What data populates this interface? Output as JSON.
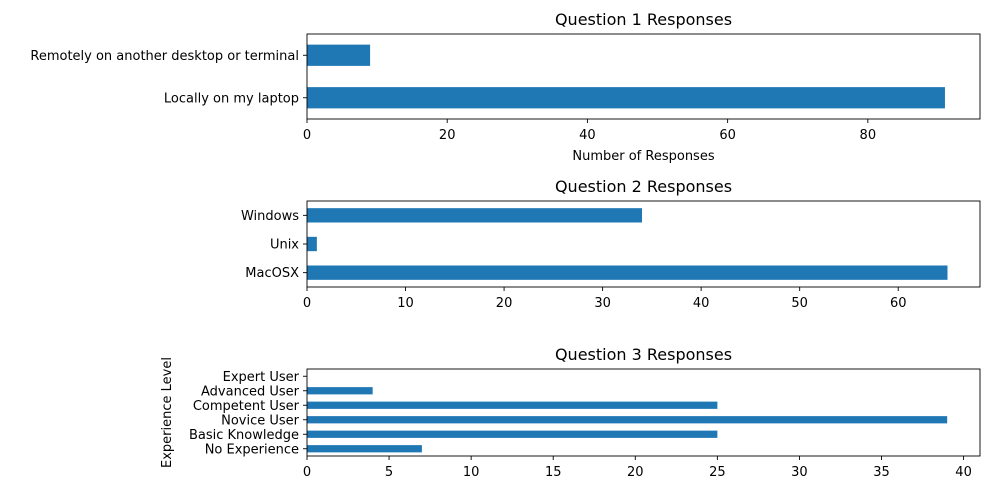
{
  "chart_data": [
    {
      "type": "bar",
      "orientation": "horizontal",
      "title": "Question 1 Responses",
      "xlabel": "Number of Responses",
      "ylabel": "",
      "categories": [
        "Locally on my laptop",
        "Remotely on another desktop or terminal"
      ],
      "values": [
        91,
        9
      ],
      "xlim": [
        0,
        96
      ],
      "xticks": [
        0,
        20,
        40,
        60,
        80
      ],
      "color": "#1f77b4",
      "grid": false,
      "legend": "none"
    },
    {
      "type": "bar",
      "orientation": "horizontal",
      "title": "Question 2 Responses",
      "xlabel": "",
      "ylabel": "",
      "categories": [
        "MacOSX",
        "Unix",
        "Windows"
      ],
      "values": [
        65,
        1,
        34
      ],
      "xlim": [
        0,
        68.3
      ],
      "xticks": [
        0,
        10,
        20,
        30,
        40,
        50,
        60
      ],
      "color": "#1f77b4",
      "grid": false,
      "legend": "none"
    },
    {
      "type": "bar",
      "orientation": "horizontal",
      "title": "Question 3 Responses",
      "xlabel": "",
      "ylabel": "Experience Level",
      "categories": [
        "No Experience",
        "Basic Knowledge",
        "Novice User",
        "Competent User",
        "Advanced User",
        "Expert User"
      ],
      "values": [
        7,
        25,
        39,
        25,
        4,
        0
      ],
      "xlim": [
        0,
        41
      ],
      "xticks": [
        0,
        5,
        10,
        15,
        20,
        25,
        30,
        35,
        40
      ],
      "color": "#1f77b4",
      "grid": false,
      "legend": "none"
    }
  ]
}
